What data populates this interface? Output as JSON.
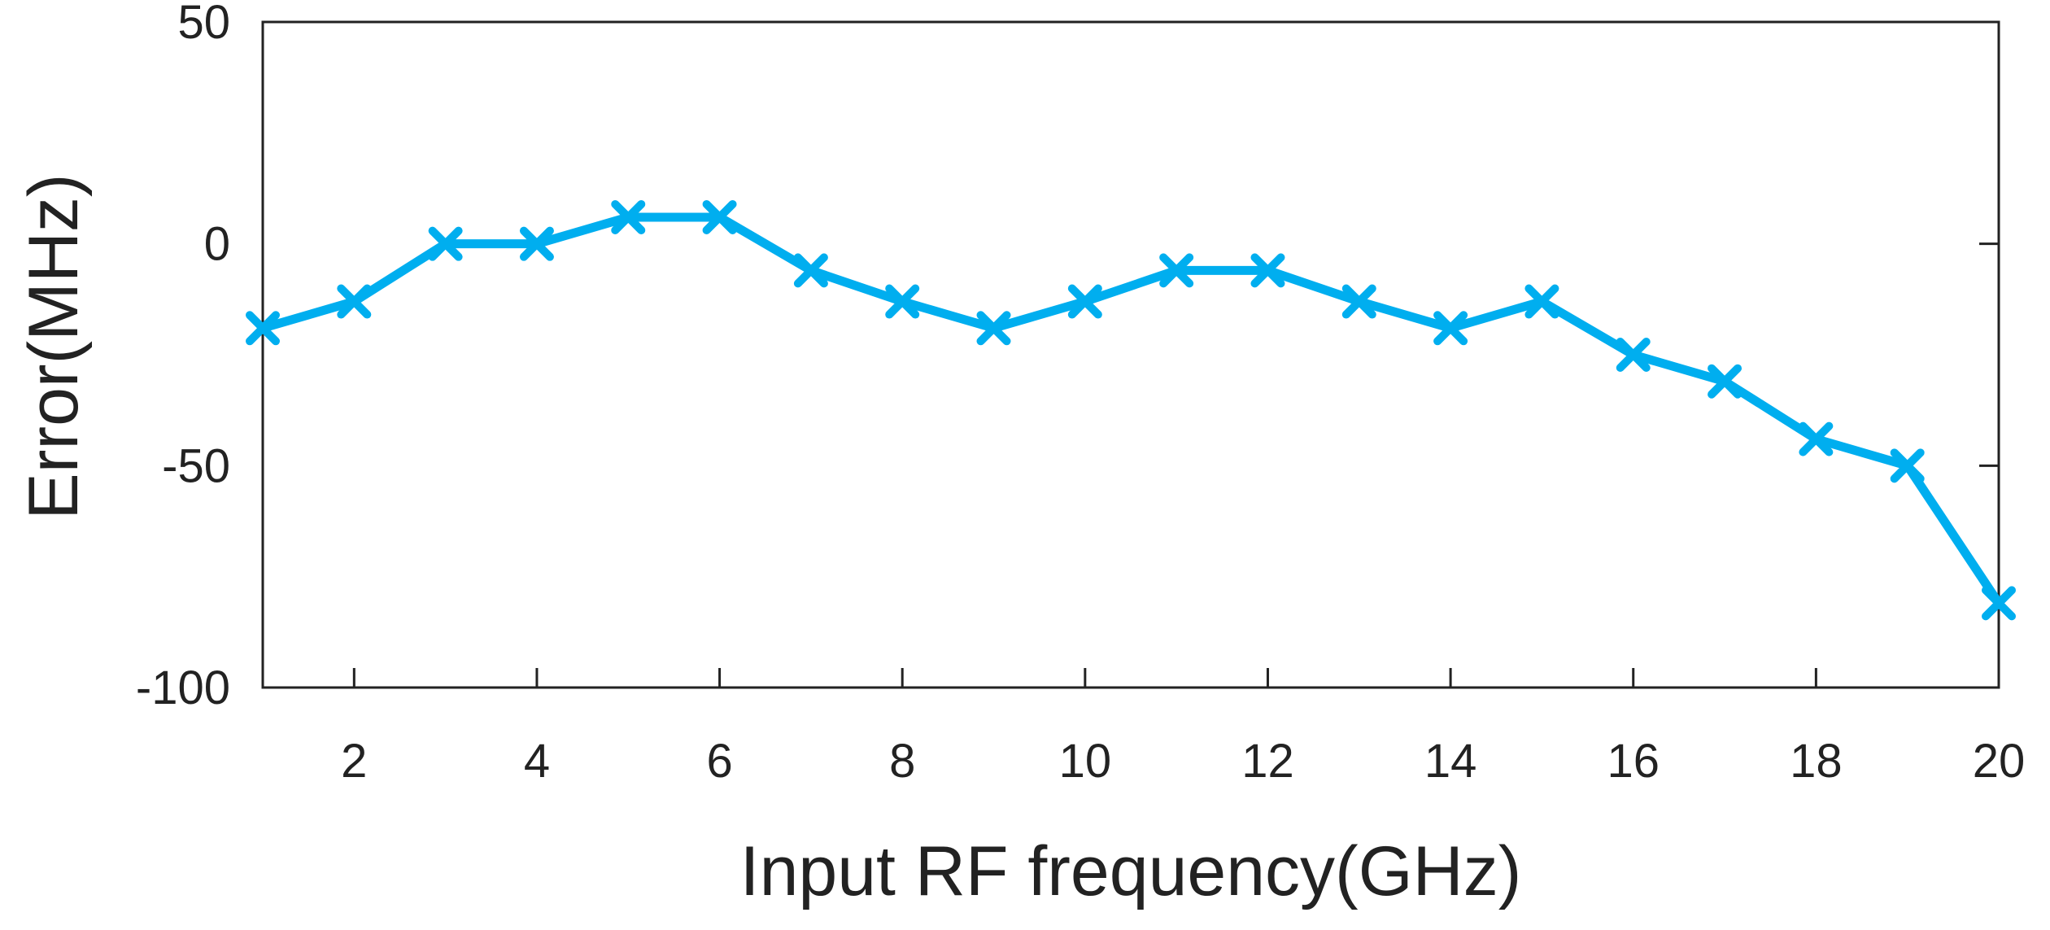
{
  "chart_data": {
    "type": "line",
    "title": "",
    "xlabel": "Input RF frequency(GHz)",
    "ylabel": "Error(MHz)",
    "xlim": [
      1,
      20
    ],
    "ylim": [
      -100,
      50
    ],
    "xticks": [
      2,
      4,
      6,
      8,
      10,
      12,
      14,
      16,
      18,
      20
    ],
    "yticks": [
      50,
      0,
      -50,
      -100
    ],
    "grid": false,
    "legend": "none",
    "series": [
      {
        "name": "Error",
        "color": "#00AEEF",
        "marker": "x",
        "x": [
          1,
          2,
          3,
          4,
          5,
          6,
          7,
          8,
          9,
          10,
          11,
          12,
          13,
          14,
          15,
          16,
          17,
          18,
          19,
          20
        ],
        "y": [
          -19,
          -13,
          0,
          0,
          6,
          6,
          -6,
          -13,
          -19,
          -13,
          -6,
          -6,
          -13,
          -19,
          -13,
          -25,
          -31,
          -44,
          -50,
          -81
        ]
      }
    ]
  }
}
